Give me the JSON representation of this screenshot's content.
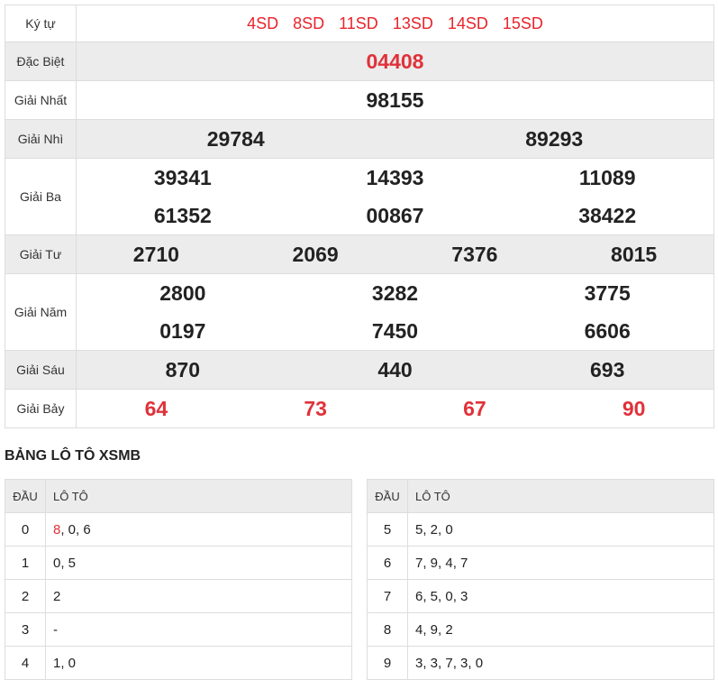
{
  "results": {
    "ky_tu": {
      "label": "Ký tự",
      "codes": [
        "4SD",
        "8SD",
        "11SD",
        "13SD",
        "14SD",
        "15SD"
      ]
    },
    "dac_biet": {
      "label": "Đặc Biệt",
      "numbers": [
        "04408"
      ]
    },
    "giai_nhat": {
      "label": "Giải Nhất",
      "numbers": [
        "98155"
      ]
    },
    "giai_nhi": {
      "label": "Giải Nhì",
      "numbers": [
        "29784",
        "89293"
      ]
    },
    "giai_ba": {
      "label": "Giải Ba",
      "numbers": [
        "39341",
        "14393",
        "11089",
        "61352",
        "00867",
        "38422"
      ]
    },
    "giai_tu": {
      "label": "Giải Tư",
      "numbers": [
        "2710",
        "2069",
        "7376",
        "8015"
      ]
    },
    "giai_nam": {
      "label": "Giải Năm",
      "numbers": [
        "2800",
        "3282",
        "3775",
        "0197",
        "7450",
        "6606"
      ]
    },
    "giai_sau": {
      "label": "Giải Sáu",
      "numbers": [
        "870",
        "440",
        "693"
      ]
    },
    "giai_bay": {
      "label": "Giải Bảy",
      "numbers": [
        "64",
        "73",
        "67",
        "90"
      ]
    }
  },
  "loto": {
    "title": "BẢNG LÔ TÔ XSMB",
    "head_label": "ĐẦU",
    "values_label": "LÔ TÔ",
    "rows": [
      {
        "dau": "0",
        "first": "8",
        "rest": ", 0, 6"
      },
      {
        "dau": "1",
        "first": "0",
        "rest": ", 5"
      },
      {
        "dau": "2",
        "first": "2",
        "rest": ""
      },
      {
        "dau": "3",
        "first": "-",
        "rest": ""
      },
      {
        "dau": "4",
        "first": "1",
        "rest": ", 0"
      },
      {
        "dau": "5",
        "first": "5",
        "rest": ", 2, 0"
      },
      {
        "dau": "6",
        "first": "7",
        "rest": ", 9, 4, 7"
      },
      {
        "dau": "7",
        "first": "6",
        "rest": ", 5, 0, 3"
      },
      {
        "dau": "8",
        "first": "4",
        "rest": ", 9, 2"
      },
      {
        "dau": "9",
        "first": "3",
        "rest": ", 3, 7, 3, 0"
      }
    ]
  },
  "colors": {
    "accent_red": "#e0323a",
    "row_alt": "#ececec"
  }
}
